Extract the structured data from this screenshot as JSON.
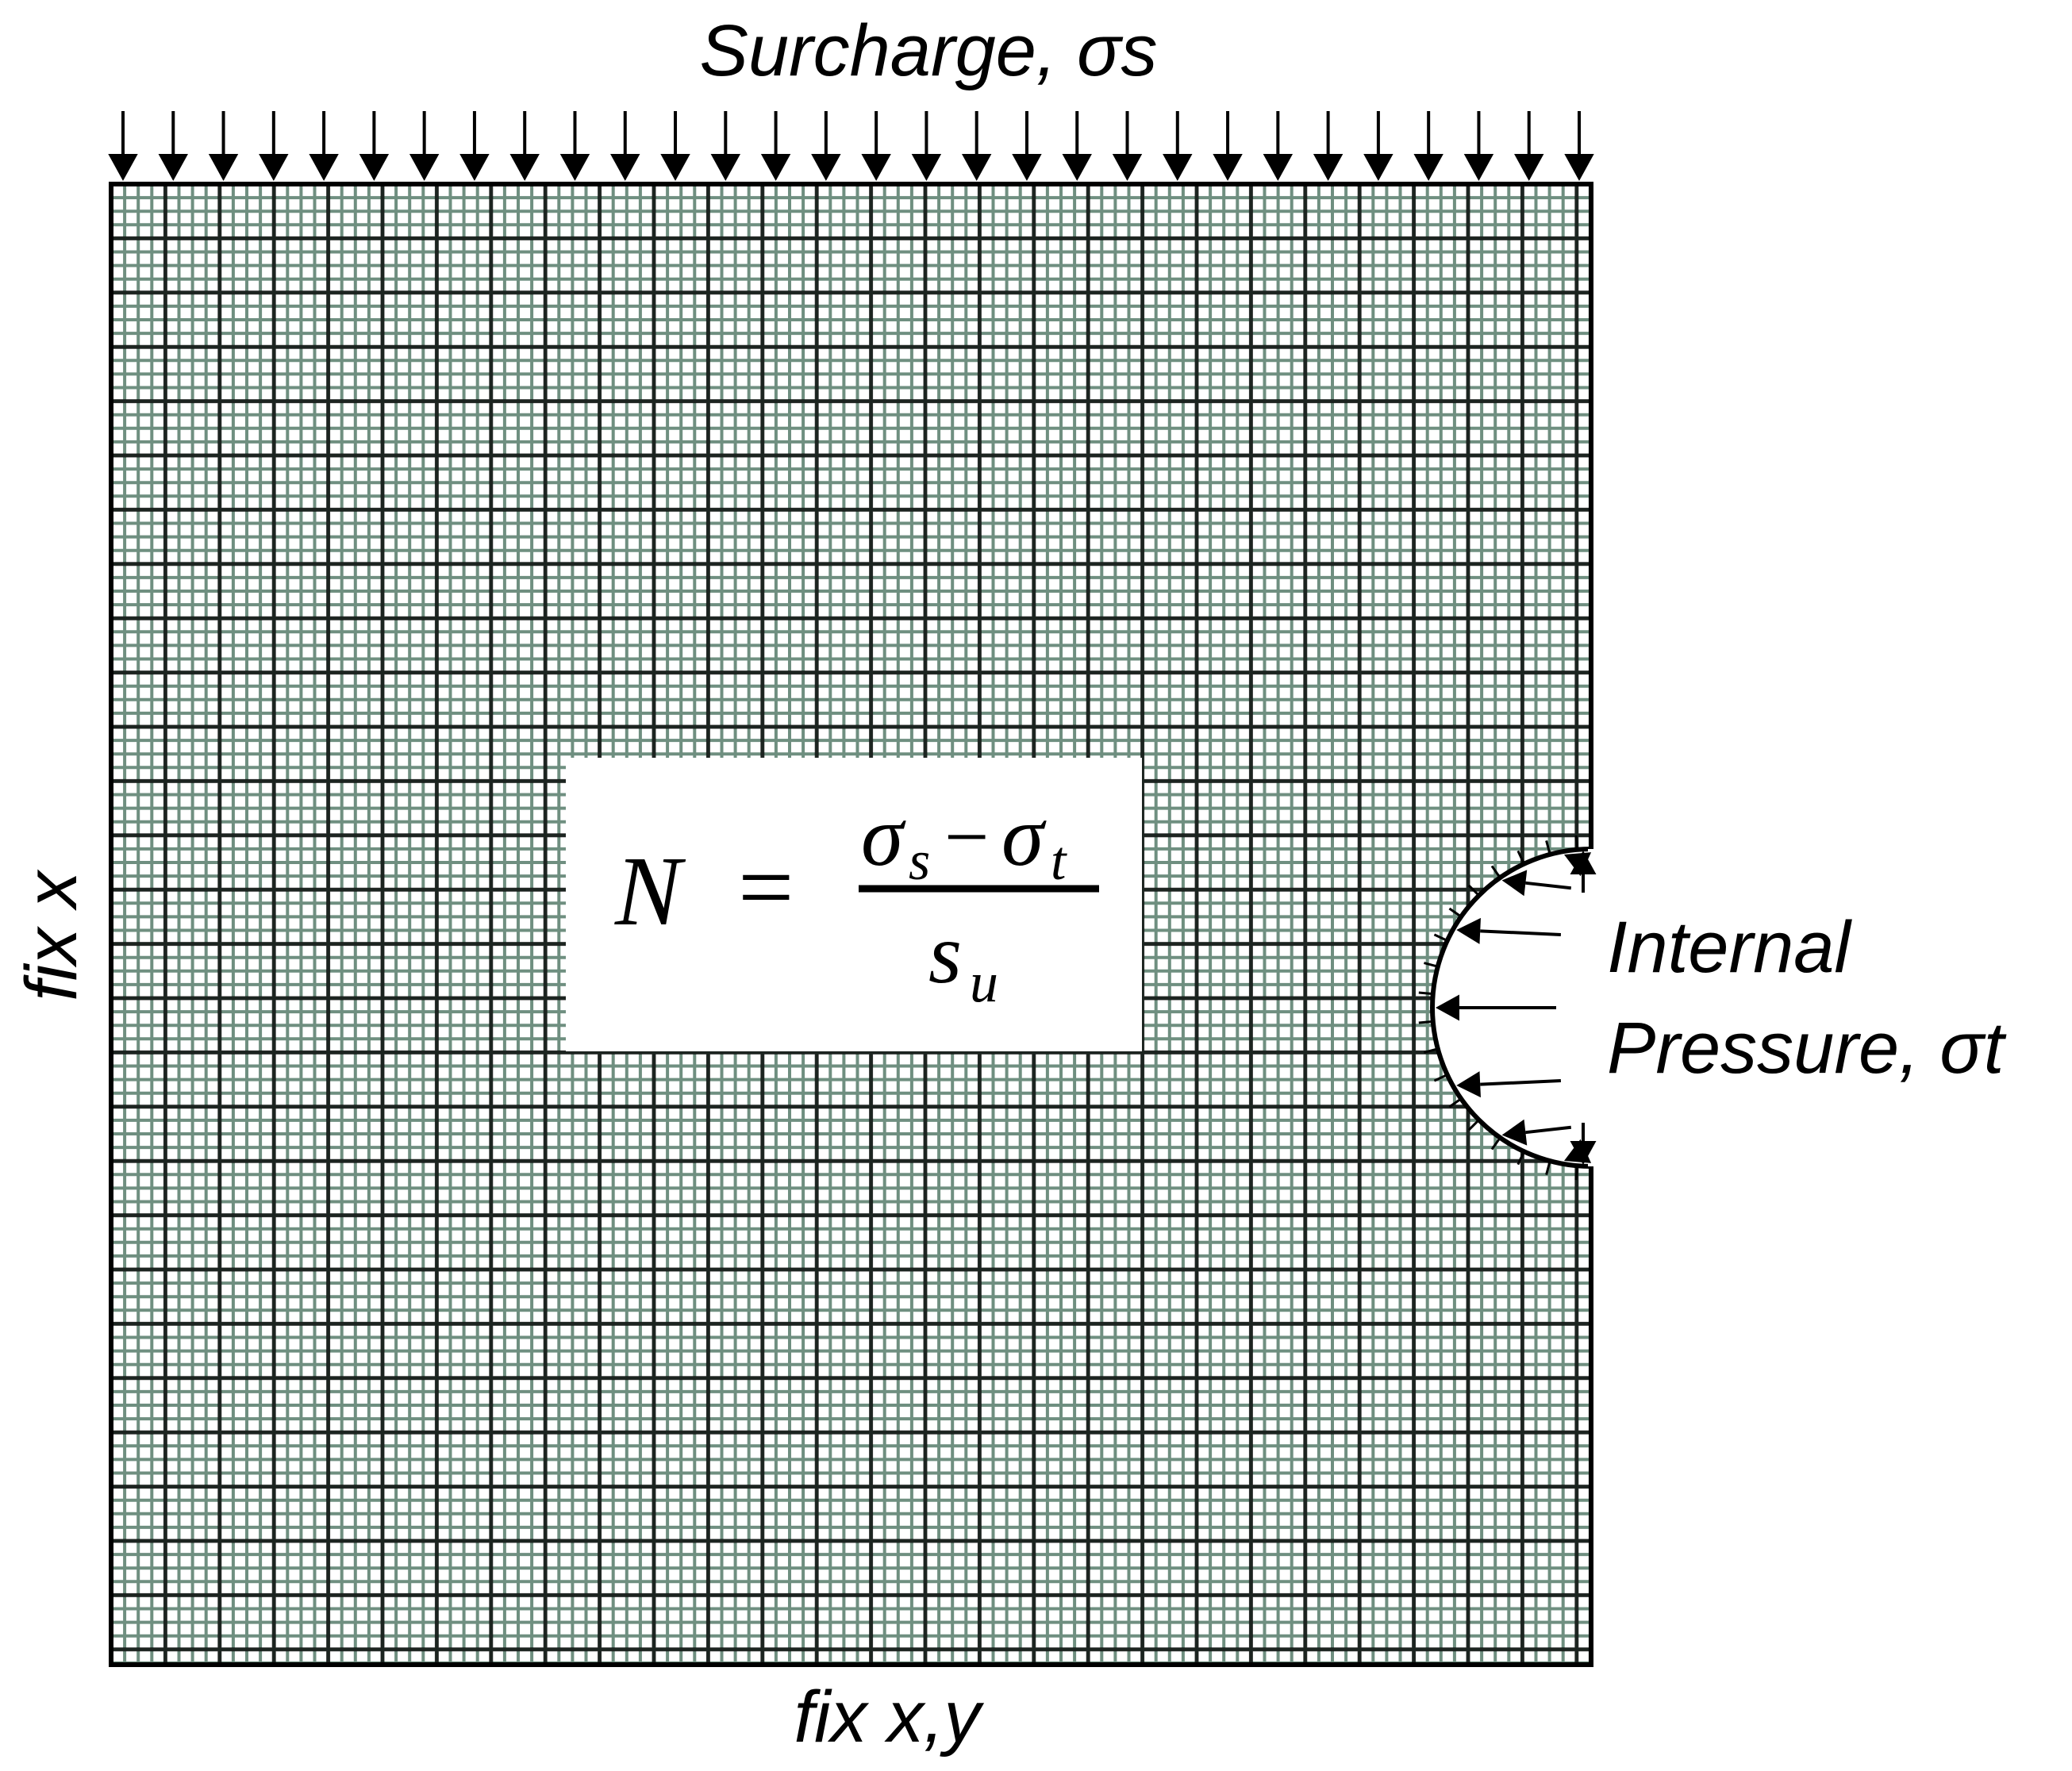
{
  "labels": {
    "top": "Surcharge, σs",
    "left": "fix x",
    "bottom": "fix x,y",
    "right_line1": "Internal",
    "right_line2": "Pressure, σt"
  },
  "equation": {
    "lhs": "N",
    "equals": "=",
    "numerator": {
      "a": "σ",
      "a_sub": "s",
      "minus": "−",
      "b": "σ",
      "b_sub": "t"
    },
    "denominator": {
      "base": "s",
      "sub": "u"
    }
  },
  "colors": {
    "line": "#000000",
    "mesh": "#6f8f80",
    "background": "#ffffff"
  }
}
